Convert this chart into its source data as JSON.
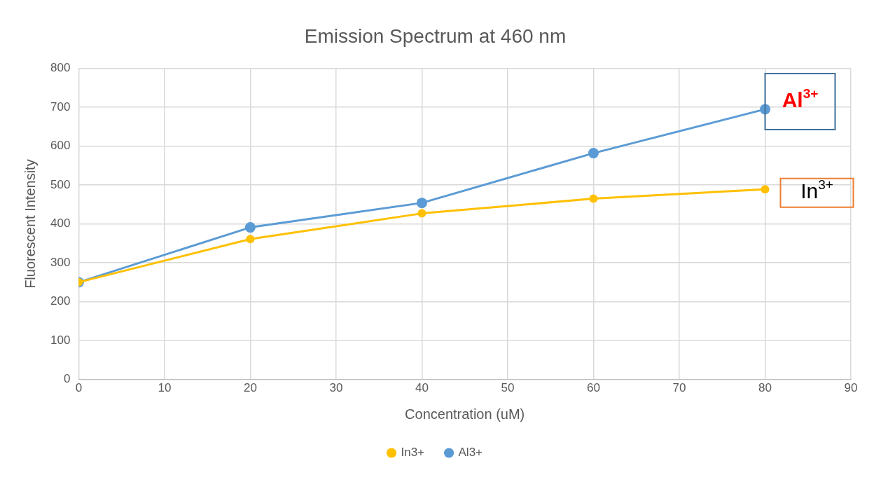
{
  "chart_data": {
    "type": "line",
    "title": "Emission Spectrum at 460 nm",
    "xlabel": "Concentration (uM)",
    "ylabel": "Fluorescent Intensity",
    "x": [
      0,
      20,
      40,
      60,
      80
    ],
    "series": [
      {
        "name": "Al3+",
        "color": "#5b9bd5",
        "values": [
          250,
          391,
          454,
          582,
          695
        ]
      },
      {
        "name": "In3+",
        "color": "#ffc000",
        "values": [
          250,
          361,
          427,
          465,
          489
        ]
      }
    ],
    "xlim": [
      0,
      90
    ],
    "xticks": [
      0,
      10,
      20,
      30,
      40,
      50,
      60,
      70,
      80,
      90
    ],
    "ylim": [
      0,
      800
    ],
    "yticks": [
      0,
      100,
      200,
      300,
      400,
      500,
      600,
      700,
      800
    ],
    "annotations": [
      "Al$^{3+}$",
      "In$^{3+}$"
    ],
    "grid": true,
    "legend": "bottom",
    "marker": "circle",
    "line_style": "solid"
  }
}
